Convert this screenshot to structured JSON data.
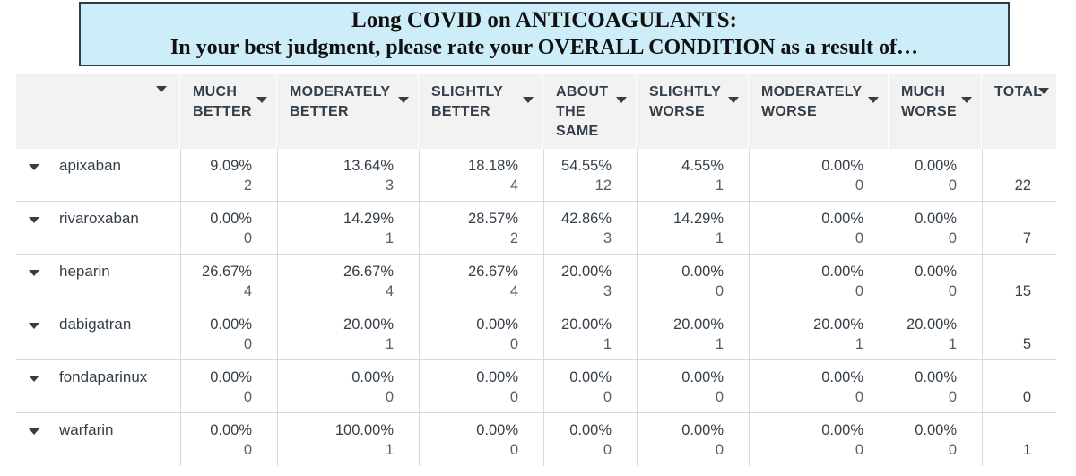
{
  "title": {
    "line1": "Long COVID on ANTICOAGULANTS:",
    "line2": "In your best judgment, please rate your OVERALL CONDITION as a result of…"
  },
  "chart_data": {
    "type": "table",
    "columns": [
      "MUCH BETTER",
      "MODERATELY BETTER",
      "SLIGHTLY BETTER",
      "ABOUT THE SAME",
      "SLIGHTLY WORSE",
      "MODERATELY WORSE",
      "MUCH WORSE"
    ],
    "total_label": "TOTAL",
    "rows": [
      {
        "name": "apixaban",
        "percents": [
          "9.09%",
          "13.64%",
          "18.18%",
          "54.55%",
          "4.55%",
          "0.00%",
          "0.00%"
        ],
        "counts": [
          "2",
          "3",
          "4",
          "12",
          "1",
          "0",
          "0"
        ],
        "total": "22"
      },
      {
        "name": "rivaroxaban",
        "percents": [
          "0.00%",
          "14.29%",
          "28.57%",
          "42.86%",
          "14.29%",
          "0.00%",
          "0.00%"
        ],
        "counts": [
          "0",
          "1",
          "2",
          "3",
          "1",
          "0",
          "0"
        ],
        "total": "7"
      },
      {
        "name": "heparin",
        "percents": [
          "26.67%",
          "26.67%",
          "26.67%",
          "20.00%",
          "0.00%",
          "0.00%",
          "0.00%"
        ],
        "counts": [
          "4",
          "4",
          "4",
          "3",
          "0",
          "0",
          "0"
        ],
        "total": "15"
      },
      {
        "name": "dabigatran",
        "percents": [
          "0.00%",
          "20.00%",
          "0.00%",
          "20.00%",
          "20.00%",
          "20.00%",
          "20.00%"
        ],
        "counts": [
          "0",
          "1",
          "0",
          "1",
          "1",
          "1",
          "1"
        ],
        "total": "5"
      },
      {
        "name": "fondaparinux",
        "percents": [
          "0.00%",
          "0.00%",
          "0.00%",
          "0.00%",
          "0.00%",
          "0.00%",
          "0.00%"
        ],
        "counts": [
          "0",
          "0",
          "0",
          "0",
          "0",
          "0",
          "0"
        ],
        "total": "0"
      },
      {
        "name": "warfarin",
        "percents": [
          "0.00%",
          "100.00%",
          "0.00%",
          "0.00%",
          "0.00%",
          "0.00%",
          "0.00%"
        ],
        "counts": [
          "0",
          "1",
          "0",
          "0",
          "0",
          "0",
          "0"
        ],
        "total": "1"
      }
    ]
  },
  "colors": {
    "title_bg": "#cdeef9",
    "header_bg": "#f2f2f2",
    "text": "#333e48",
    "divider": "#d9d9d9"
  }
}
